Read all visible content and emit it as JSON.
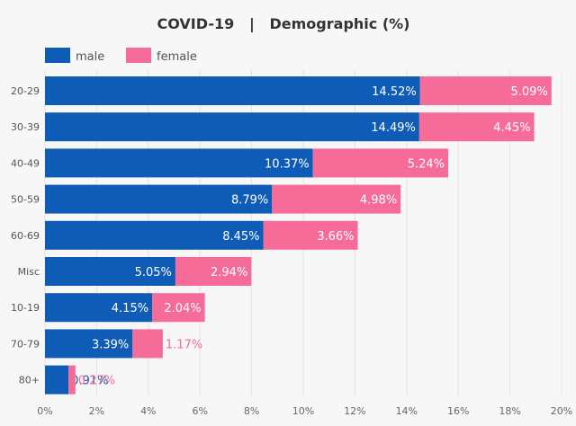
{
  "chart_data": {
    "type": "bar",
    "orientation": "horizontal",
    "stacked": true,
    "title": "COVID-19   |   Demographic (%)",
    "categories": [
      "20-29",
      "30-39",
      "40-49",
      "50-59",
      "60-69",
      "Misc",
      "10-19",
      "70-79",
      "80+"
    ],
    "series": [
      {
        "name": "male",
        "color": "#0e5cb5",
        "values": [
          14.52,
          14.49,
          10.37,
          8.79,
          8.45,
          5.05,
          4.15,
          3.39,
          0.91
        ],
        "labels": [
          "14.52%",
          "14.49%",
          "10.37%",
          "8.79%",
          "8.45%",
          "5.05%",
          "4.15%",
          "3.39%",
          "0.91%"
        ]
      },
      {
        "name": "female",
        "color": "#f56c98",
        "values": [
          5.09,
          4.45,
          5.24,
          4.98,
          3.66,
          2.94,
          2.04,
          1.17,
          0.27
        ],
        "labels": [
          "5.09%",
          "4.45%",
          "5.24%",
          "4.98%",
          "3.66%",
          "2.94%",
          "2.04%",
          "1.17%",
          "0.27%"
        ]
      }
    ],
    "xlim": [
      0,
      20
    ],
    "x_ticks": [
      "0%",
      "2%",
      "4%",
      "6%",
      "8%",
      "10%",
      "12%",
      "14%",
      "16%",
      "18%",
      "20%"
    ],
    "legend_position": "top-left",
    "grid": true
  }
}
